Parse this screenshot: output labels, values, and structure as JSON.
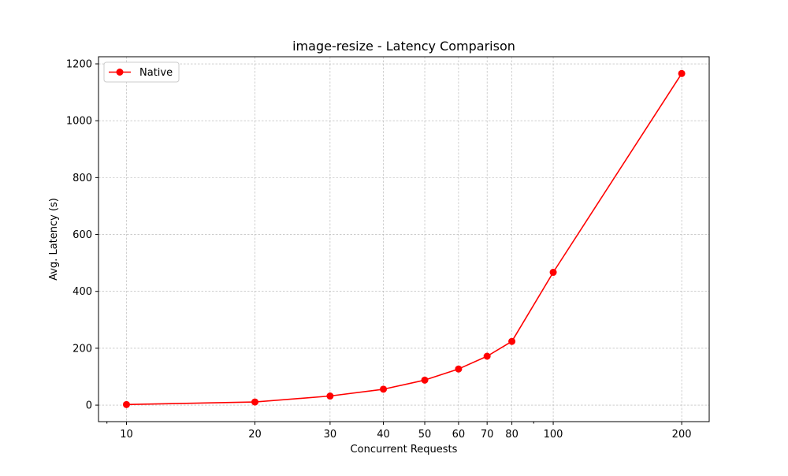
{
  "figure": {
    "chart_data": {
      "type": "line",
      "title": "image-resize - Latency Comparison",
      "xlabel": "Concurrent Requests",
      "ylabel": "Avg. Latency (s)",
      "xscale": "log",
      "xlim": [
        8.6,
        232
      ],
      "ylim": [
        -58,
        1225
      ],
      "x_ticks": [
        10,
        20,
        30,
        40,
        50,
        60,
        70,
        80,
        100,
        200
      ],
      "y_ticks": [
        0,
        200,
        400,
        600,
        800,
        1000,
        1200
      ],
      "grid": true,
      "legend_position": "top-left",
      "series": [
        {
          "name": "Native",
          "color": "#ff0000",
          "marker": "circle",
          "x": [
            10,
            20,
            30,
            40,
            50,
            60,
            70,
            80,
            100,
            200
          ],
          "y": [
            2,
            11,
            32,
            56,
            88,
            127,
            172,
            224,
            467,
            1166
          ]
        }
      ]
    }
  }
}
